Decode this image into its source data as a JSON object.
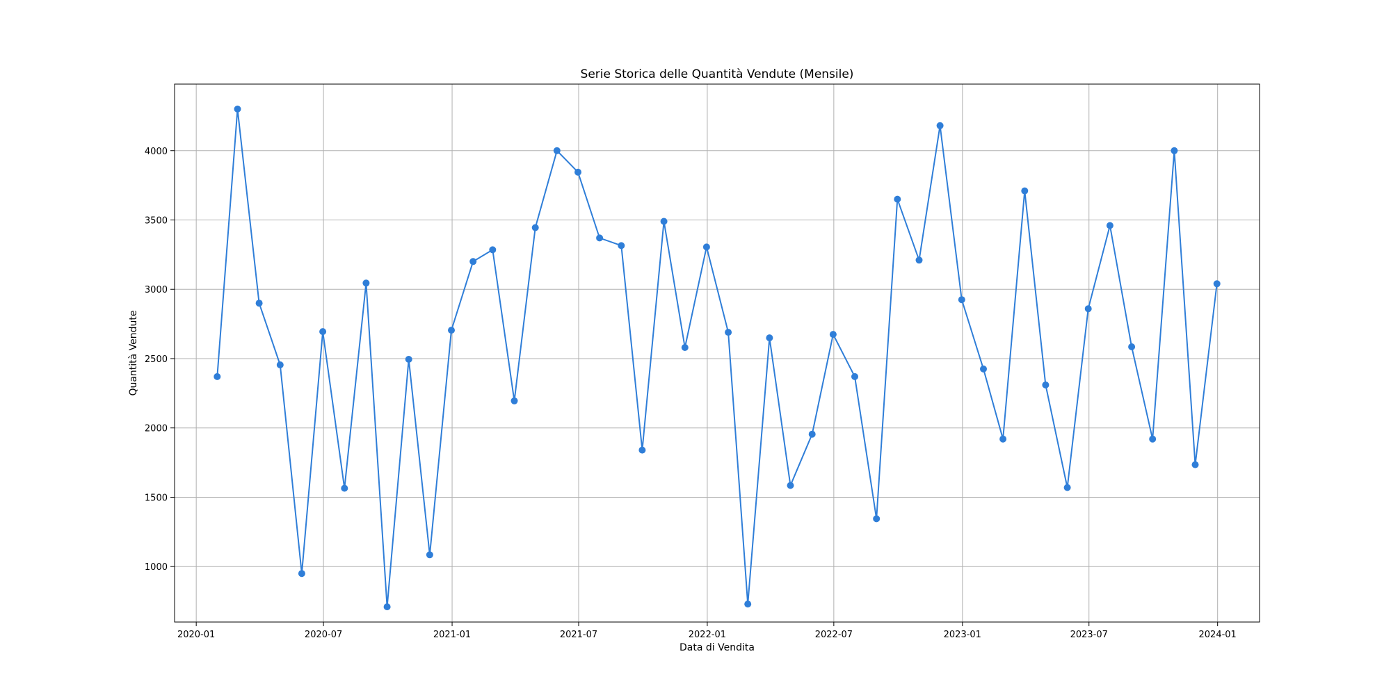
{
  "chart_data": {
    "type": "line",
    "title": "Serie Storica delle Quantità Vendute (Mensile)",
    "xlabel": "Data di Vendita",
    "ylabel": "Quantità Vendute",
    "x_axis_kind": "date",
    "xlim": [
      "2019-12-01",
      "2024-03-01"
    ],
    "ylim": [
      600,
      4480
    ],
    "grid": true,
    "marker": "circle",
    "x_ticks": [
      "2020-01",
      "2020-07",
      "2021-01",
      "2021-07",
      "2022-01",
      "2022-07",
      "2023-01",
      "2023-07",
      "2024-01"
    ],
    "y_ticks": [
      1000,
      1500,
      2000,
      2500,
      3000,
      3500,
      4000
    ],
    "series": [
      {
        "color": "#2f7ed8",
        "x": [
          "2020-01-31",
          "2020-02-29",
          "2020-03-31",
          "2020-04-30",
          "2020-05-31",
          "2020-06-30",
          "2020-07-31",
          "2020-08-31",
          "2020-09-30",
          "2020-10-31",
          "2020-11-30",
          "2020-12-31",
          "2021-01-31",
          "2021-02-28",
          "2021-03-31",
          "2021-04-30",
          "2021-05-31",
          "2021-06-30",
          "2021-07-31",
          "2021-08-31",
          "2021-09-30",
          "2021-10-31",
          "2021-11-30",
          "2021-12-31",
          "2022-01-31",
          "2022-02-28",
          "2022-03-31",
          "2022-04-30",
          "2022-05-31",
          "2022-06-30",
          "2022-07-31",
          "2022-08-31",
          "2022-09-30",
          "2022-10-31",
          "2022-11-30",
          "2022-12-31",
          "2023-01-31",
          "2023-02-28",
          "2023-03-31",
          "2023-04-30",
          "2023-05-31",
          "2023-06-30",
          "2023-07-31",
          "2023-08-31",
          "2023-09-30",
          "2023-10-31",
          "2023-11-30",
          "2023-12-31"
        ],
        "values": [
          2370,
          4300,
          2900,
          2455,
          950,
          2695,
          1565,
          3045,
          710,
          2495,
          1085,
          2705,
          3200,
          3285,
          2195,
          3445,
          4000,
          3845,
          3370,
          3315,
          1840,
          3490,
          2580,
          3305,
          2690,
          730,
          2650,
          1585,
          1955,
          2675,
          2370,
          1345,
          3650,
          3210,
          4180,
          2925,
          2425,
          1920,
          3710,
          2310,
          1570,
          2860,
          3460,
          2585,
          1920,
          4000,
          1735,
          3040
        ]
      }
    ]
  }
}
